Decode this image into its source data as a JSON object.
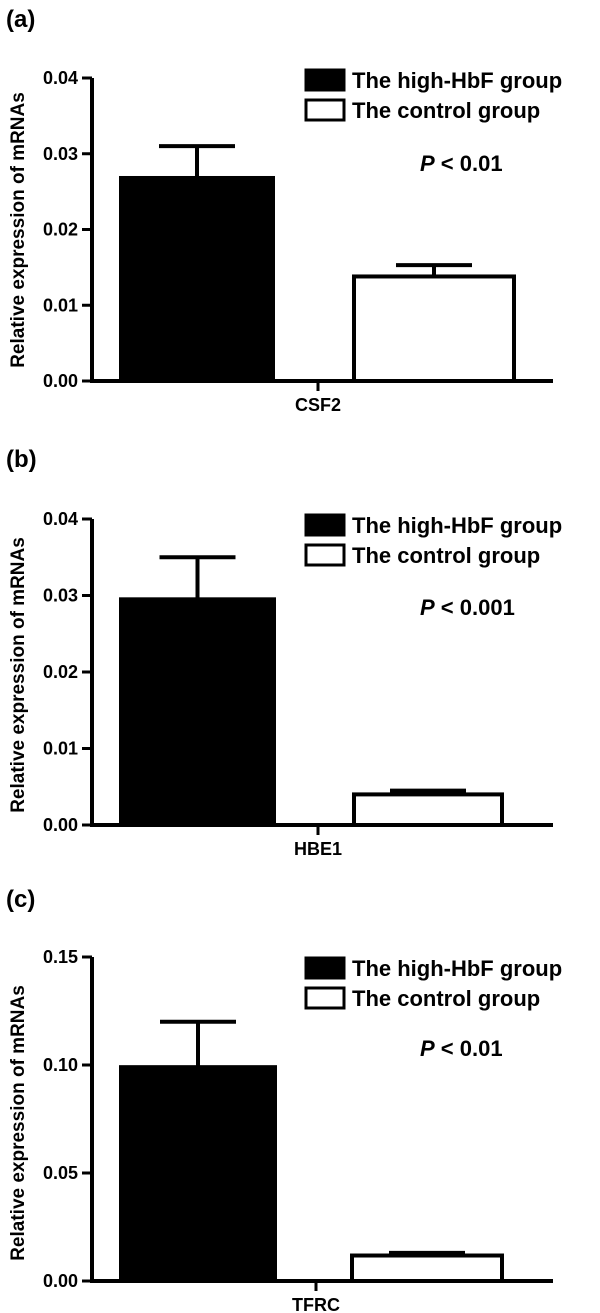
{
  "chart_data": [
    {
      "panel_label": "(a)",
      "type": "bar",
      "categories": [
        "CSF2"
      ],
      "series": [
        {
          "name": "The high-HbF group",
          "values": [
            0.0268
          ],
          "errors": [
            0.0042
          ],
          "color": "#000000"
        },
        {
          "name": "The control group",
          "values": [
            0.0138
          ],
          "errors": [
            0.0015
          ],
          "color": "#ffffff"
        }
      ],
      "ylabel": "Relative expression of mRNAs",
      "xlabel": "CSF2",
      "ylim": [
        0,
        0.04
      ],
      "yticks": [
        "0.00",
        "0.01",
        "0.02",
        "0.03",
        "0.04"
      ],
      "p_symbol": "P",
      "p_rest": " < 0.01",
      "legend": "top-right",
      "grid": false
    },
    {
      "panel_label": "(b)",
      "type": "bar",
      "categories": [
        "HBE1"
      ],
      "series": [
        {
          "name": "The high-HbF group",
          "values": [
            0.0295
          ],
          "errors": [
            0.0055
          ],
          "color": "#000000"
        },
        {
          "name": "The control group",
          "values": [
            0.004
          ],
          "errors": [
            0.0005
          ],
          "color": "#ffffff"
        }
      ],
      "ylabel": "Relative expression of mRNAs",
      "xlabel": "HBE1",
      "ylim": [
        0,
        0.04
      ],
      "yticks": [
        "0.00",
        "0.01",
        "0.02",
        "0.03",
        "0.04"
      ],
      "p_symbol": "P",
      "p_rest": " < 0.001",
      "legend": "top-right",
      "grid": false
    },
    {
      "panel_label": "(c)",
      "type": "bar",
      "categories": [
        "TFRC"
      ],
      "series": [
        {
          "name": "The high-HbF group",
          "values": [
            0.099
          ],
          "errors": [
            0.021
          ],
          "color": "#000000"
        },
        {
          "name": "The control group",
          "values": [
            0.0118
          ],
          "errors": [
            0.0012
          ],
          "color": "#ffffff"
        }
      ],
      "ylabel": "Relative expression of mRNAs",
      "xlabel": "TFRC",
      "ylim": [
        0,
        0.15
      ],
      "yticks": [
        "0.00",
        "0.05",
        "0.10",
        "0.15"
      ],
      "p_symbol": "P",
      "p_rest": " < 0.01",
      "legend": "top-right",
      "grid": false
    }
  ]
}
